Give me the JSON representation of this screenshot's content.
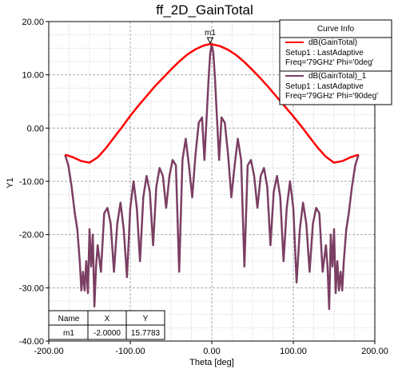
{
  "chart_data": {
    "type": "line",
    "title": "ff_2D_GainTotal",
    "xlabel": "Theta [deg]",
    "ylabel": "Y1",
    "xlim": [
      -200,
      200
    ],
    "ylim": [
      -40,
      20
    ],
    "x_ticks": [
      -200,
      -100,
      0,
      100,
      200
    ],
    "x_tick_labels": [
      "-200.00",
      "-100.00",
      "0.00",
      "100.00",
      "200.00"
    ],
    "y_ticks": [
      20,
      10,
      0,
      -10,
      -20,
      -30,
      -40
    ],
    "y_tick_labels": [
      "20.00",
      "10.00",
      "0.00",
      "-10.00",
      "-20.00",
      "-30.00",
      "-40.00"
    ],
    "grid": true,
    "legend_title": "Curve Info",
    "legend_position": "top-right",
    "series": [
      {
        "name": "dB(GainTotal)",
        "info_lines": [
          "Setup1 : LastAdaptive",
          "Freq='79GHz' Phi='0deg'"
        ],
        "color": "#ff0000",
        "x": [
          -180,
          -170,
          -160,
          -150,
          -140,
          -130,
          -120,
          -110,
          -100,
          -90,
          -80,
          -70,
          -60,
          -50,
          -40,
          -30,
          -20,
          -10,
          -2,
          0,
          10,
          20,
          30,
          40,
          50,
          60,
          70,
          80,
          90,
          100,
          110,
          120,
          130,
          140,
          150,
          160,
          170,
          180
        ],
        "y": [
          -5,
          -5.5,
          -6.2,
          -6.5,
          -5.5,
          -3.8,
          -1.8,
          0.2,
          2.3,
          4.2,
          6.0,
          7.8,
          9.4,
          11.0,
          12.5,
          13.8,
          14.8,
          15.5,
          15.78,
          15.75,
          15.4,
          14.7,
          13.7,
          12.4,
          10.9,
          9.3,
          7.6,
          5.8,
          4.0,
          2.2,
          0.3,
          -1.7,
          -3.7,
          -5.4,
          -6.5,
          -6.2,
          -5.5,
          -5
        ]
      },
      {
        "name": "dB(GainTotal)_1",
        "info_lines": [
          "Setup1 : LastAdaptive",
          "Freq='79GHz' Phi='90deg'"
        ],
        "color": "#7b3f63",
        "x": [
          -180,
          -176,
          -172,
          -168,
          -165,
          -162,
          -160,
          -158,
          -156,
          -154,
          -152,
          -150,
          -148,
          -146,
          -144,
          -142,
          -140,
          -136,
          -132,
          -128,
          -124,
          -120,
          -116,
          -112,
          -108,
          -104,
          -100,
          -96,
          -92,
          -88,
          -84,
          -80,
          -76,
          -72,
          -68,
          -64,
          -60,
          -56,
          -52,
          -48,
          -44,
          -40,
          -36,
          -32,
          -28,
          -24,
          -20,
          -16,
          -12,
          -9,
          -6,
          -4,
          -2,
          0,
          2,
          4,
          6,
          9,
          12,
          16,
          20,
          24,
          28,
          32,
          36,
          40,
          44,
          48,
          52,
          56,
          60,
          64,
          68,
          72,
          76,
          80,
          84,
          88,
          92,
          96,
          100,
          104,
          108,
          112,
          116,
          120,
          124,
          128,
          132,
          136,
          140,
          142,
          144,
          146,
          148,
          150,
          152,
          154,
          156,
          158,
          160,
          162,
          165,
          168,
          172,
          176,
          180
        ],
        "y": [
          -5,
          -7,
          -11,
          -16,
          -19,
          -25,
          -30.5,
          -27,
          -30.5,
          -25,
          -31,
          -19,
          -26,
          -20,
          -33.5,
          -26,
          -22,
          -27,
          -16,
          -15,
          -18,
          -27,
          -18,
          -14,
          -19,
          -28,
          -15,
          -10,
          -15,
          -25,
          -13,
          -9,
          -12,
          -22,
          -11,
          -7.5,
          -9,
          -15,
          -9,
          -6,
          -7,
          -27,
          -6,
          -2,
          -7,
          -13,
          -5,
          1,
          2,
          -6,
          3,
          9,
          14,
          15.78,
          14,
          9,
          3,
          -6,
          2,
          1,
          -5,
          -13,
          -7,
          -2,
          -6,
          -26,
          -7,
          -6,
          -9,
          -15,
          -9,
          -7.5,
          -11,
          -22,
          -12,
          -9,
          -13,
          -25,
          -15,
          -10,
          -15,
          -29,
          -19,
          -14,
          -18,
          -27,
          -18,
          -15,
          -16,
          -27,
          -22,
          -26,
          -34,
          -20,
          -26,
          -19,
          -31,
          -25,
          -30.5,
          -27,
          -30.5,
          -25,
          -19,
          -16,
          -11,
          -7,
          -5
        ]
      }
    ],
    "marker": {
      "name": "m1",
      "x": -2,
      "y": 15.7783,
      "table": {
        "headers": [
          "Name",
          "X",
          "Y"
        ],
        "row": [
          "m1",
          "-2.0000",
          "15.7783"
        ]
      }
    }
  }
}
